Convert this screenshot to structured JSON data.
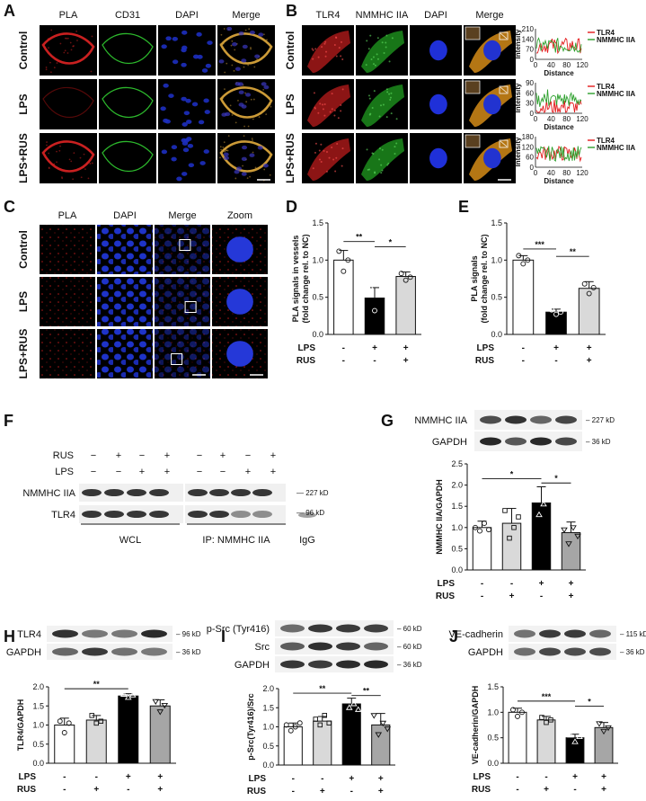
{
  "panels": {
    "A": {
      "letter": "A",
      "columns": [
        "PLA",
        "CD31",
        "DAPI",
        "Merge"
      ],
      "rows": [
        "Control",
        "LPS",
        "LPS+RUS"
      ]
    },
    "B": {
      "letter": "B",
      "columns": [
        "TLR4",
        "NMMHC IIA",
        "DAPI",
        "Merge"
      ],
      "rows": [
        "Control",
        "LPS",
        "LPS+RUS"
      ],
      "profile_ylabel": "Intensity",
      "profile_xlabel": "Distance",
      "profile_legend": [
        "TLR4",
        "NMMHC IIA"
      ],
      "profile_yticks": [
        [
          "210",
          "140",
          "70",
          "0"
        ],
        [
          "90",
          "60",
          "30",
          "0"
        ],
        [
          "180",
          "120",
          "60",
          "0"
        ]
      ],
      "profile_xticks": [
        "0",
        "40",
        "80",
        "120"
      ]
    },
    "C": {
      "letter": "C",
      "columns": [
        "PLA",
        "DAPI",
        "Merge",
        "Zoom"
      ],
      "rows": [
        "Control",
        "LPS",
        "LPS+RUS"
      ]
    },
    "F": {
      "letter": "F",
      "rus_label": "RUS",
      "lps_label": "LPS",
      "rus_signs": [
        "−",
        "+",
        "−",
        "+",
        "−",
        "+",
        "−",
        "+"
      ],
      "lps_signs": [
        "−",
        "−",
        "+",
        "+",
        "−",
        "−",
        "+",
        "+"
      ],
      "bands": [
        "NMMHC IIA",
        "TLR4"
      ],
      "markers": [
        "227 kD",
        "96 kD"
      ],
      "groups": [
        "WCL",
        "IP: NMMHC IIA",
        "IgG"
      ]
    }
  },
  "charts": [
    {
      "id": "D",
      "letter": "D",
      "type": "bar",
      "ylabel": "PLA signals in vessels\n(fold change rel. to NC)",
      "categories": [
        "1",
        "2",
        "3"
      ],
      "lps": [
        "-",
        "+",
        "+"
      ],
      "rus": [
        "-",
        "-",
        "+"
      ],
      "values": [
        1.0,
        0.49,
        0.78
      ],
      "errors": [
        0.13,
        0.14,
        0.06
      ],
      "points": [
        [
          1.12,
          0.85,
          1.0
        ],
        [
          0.62,
          0.32,
          0.55
        ],
        [
          0.82,
          0.73,
          0.77
        ]
      ],
      "yticks": [
        "0.0",
        "0.5",
        "1.0",
        "1.5"
      ],
      "ylim": [
        0,
        1.5
      ],
      "sig": [
        {
          "from": 0,
          "to": 1,
          "label": "**",
          "y": 1.25
        },
        {
          "from": 1,
          "to": 2,
          "label": "*",
          "y": 1.18
        }
      ]
    },
    {
      "id": "E",
      "letter": "E",
      "type": "bar",
      "ylabel": "PLA signals\n(fold change rel. to NC)",
      "categories": [
        "1",
        "2",
        "3"
      ],
      "lps": [
        "-",
        "+",
        "+"
      ],
      "rus": [
        "-",
        "-",
        "+"
      ],
      "values": [
        1.0,
        0.3,
        0.62
      ],
      "errors": [
        0.06,
        0.04,
        0.09
      ],
      "points": [
        [
          1.06,
          0.95,
          1.0
        ],
        [
          0.33,
          0.27,
          0.3
        ],
        [
          0.68,
          0.55,
          0.63
        ]
      ],
      "yticks": [
        "0.0",
        "0.5",
        "1.0",
        "1.5"
      ],
      "ylim": [
        0,
        1.5
      ],
      "sig": [
        {
          "from": 0,
          "to": 1,
          "label": "***",
          "y": 1.15
        },
        {
          "from": 1,
          "to": 2,
          "label": "**",
          "y": 1.05
        }
      ]
    },
    {
      "id": "G",
      "letter": "G",
      "type": "bar",
      "ylabel": "NMMHC IIA/GAPDH",
      "categories": [
        "1",
        "2",
        "3",
        "4"
      ],
      "lps": [
        "-",
        "-",
        "+",
        "+"
      ],
      "rus": [
        "-",
        "+",
        "-",
        "+"
      ],
      "values": [
        1.0,
        1.1,
        1.58,
        0.88
      ],
      "errors": [
        0.15,
        0.35,
        0.38,
        0.25
      ],
      "points": [
        [
          1.0,
          0.92,
          1.1,
          0.95
        ],
        [
          1.4,
          0.75,
          1.0,
          1.25
        ],
        [
          1.8,
          1.3,
          1.55,
          2.1
        ],
        [
          0.95,
          0.62,
          1.0,
          0.8
        ]
      ],
      "yticks": [
        "0.0",
        "0.5",
        "1.0",
        "1.5",
        "2.0",
        "2.5"
      ],
      "ylim": [
        0,
        2.5
      ],
      "sig": [
        {
          "from": 0,
          "to": 2,
          "label": "*",
          "y": 2.15
        },
        {
          "from": 2,
          "to": 3,
          "label": "*",
          "y": 2.05
        }
      ],
      "blot_bands": [
        "NMMHC IIA",
        "GAPDH"
      ],
      "blot_markers": [
        "227 kD",
        "36 kD"
      ]
    },
    {
      "id": "H",
      "letter": "H",
      "type": "bar",
      "ylabel": "TLR4/GAPDH",
      "categories": [
        "1",
        "2",
        "3",
        "4"
      ],
      "lps": [
        "-",
        "-",
        "+",
        "+"
      ],
      "rus": [
        "-",
        "+",
        "-",
        "+"
      ],
      "values": [
        1.0,
        1.13,
        1.76,
        1.5
      ],
      "errors": [
        0.18,
        0.12,
        0.06,
        0.16
      ],
      "points": [
        [
          1.1,
          0.8,
          1.05
        ],
        [
          1.25,
          1.05,
          1.1
        ],
        [
          1.8,
          1.72,
          1.78
        ],
        [
          1.62,
          1.35,
          1.52
        ]
      ],
      "yticks": [
        "0.0",
        "0.5",
        "1.0",
        "1.5",
        "2.0"
      ],
      "ylim": [
        0,
        2.0
      ],
      "sig": [
        {
          "from": 0,
          "to": 2,
          "label": "**",
          "y": 1.95
        }
      ],
      "blot_bands": [
        "TLR4",
        "GAPDH"
      ],
      "blot_markers": [
        "96 kD",
        "36 kD"
      ]
    },
    {
      "id": "I",
      "letter": "I",
      "type": "bar",
      "ylabel": "p-Src(Tyr416)/Src",
      "categories": [
        "1",
        "2",
        "3",
        "4"
      ],
      "lps": [
        "-",
        "-",
        "+",
        "+"
      ],
      "rus": [
        "-",
        "+",
        "-",
        "+"
      ],
      "values": [
        1.0,
        1.15,
        1.6,
        1.05
      ],
      "errors": [
        0.1,
        0.12,
        0.15,
        0.3
      ],
      "points": [
        [
          1.05,
          0.9,
          1.0,
          1.1
        ],
        [
          1.2,
          1.05,
          1.3,
          1.1
        ],
        [
          1.75,
          1.5,
          1.6,
          1.45
        ],
        [
          1.3,
          0.8,
          1.1,
          0.95
        ]
      ],
      "yticks": [
        "0.0",
        "0.5",
        "1.0",
        "1.5",
        "2.0"
      ],
      "ylim": [
        0,
        2.0
      ],
      "sig": [
        {
          "from": 0,
          "to": 2,
          "label": "**",
          "y": 1.88
        },
        {
          "from": 2,
          "to": 3,
          "label": "**",
          "y": 1.82
        }
      ],
      "blot_bands": [
        "p-Src (Tyr416)",
        "Src",
        "GAPDH"
      ],
      "blot_markers": [
        "60 kD",
        "60 kD",
        "36 kD"
      ]
    },
    {
      "id": "J",
      "letter": "J",
      "type": "bar",
      "ylabel": "VE-cadherin/GAPDH",
      "categories": [
        "1",
        "2",
        "3",
        "4"
      ],
      "lps": [
        "-",
        "-",
        "+",
        "+"
      ],
      "rus": [
        "-",
        "+",
        "-",
        "+"
      ],
      "values": [
        1.0,
        0.85,
        0.5,
        0.7
      ],
      "errors": [
        0.08,
        0.07,
        0.07,
        0.1
      ],
      "points": [
        [
          1.05,
          0.92,
          1.0
        ],
        [
          0.9,
          0.8,
          0.85
        ],
        [
          0.55,
          0.42,
          0.52
        ],
        [
          0.78,
          0.63,
          0.7
        ]
      ],
      "yticks": [
        "0.0",
        "0.5",
        "1.0",
        "1.5"
      ],
      "ylim": [
        0,
        1.5
      ],
      "sig": [
        {
          "from": 0,
          "to": 2,
          "label": "***",
          "y": 1.22
        },
        {
          "from": 2,
          "to": 3,
          "label": "*",
          "y": 1.12
        }
      ],
      "blot_bands": [
        "VE-cadherin",
        "GAPDH"
      ],
      "blot_markers": [
        "115 kD",
        "36 kD"
      ]
    }
  ],
  "shared": {
    "lps_label": "LPS",
    "rus_label": "RUS"
  },
  "colors": {
    "bar_fills": [
      "#ffffff",
      "#d9d9d9",
      "#000000",
      "#a6a6a6"
    ],
    "bar_fills_3": [
      "#ffffff",
      "#000000",
      "#d9d9d9"
    ],
    "tlr4_line": "#e41a1c",
    "nmmhc_line": "#2ca02c",
    "micro_bg": "#000000",
    "dapi": "#1a2fb3"
  }
}
